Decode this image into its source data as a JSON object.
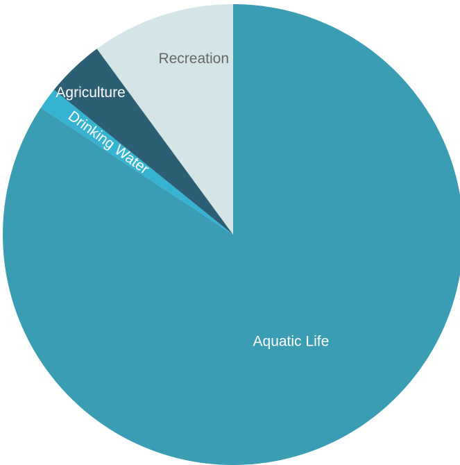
{
  "chart_data": {
    "type": "pie",
    "title": "",
    "slices": [
      {
        "label": "Aquatic Life",
        "value": 82.0,
        "color": "#3a9db3",
        "label_color": "#ffffff"
      },
      {
        "label": "Drinking Water",
        "value": 1.5,
        "color": "#35b3d1",
        "label_color": "#ffffff"
      },
      {
        "label": "Agriculture",
        "value": 4.0,
        "color": "#2c5f73",
        "label_color": "#ffffff"
      },
      {
        "label": "Recreation",
        "value": 9.8,
        "color": "#d3e5e7",
        "label_color": "#666666"
      }
    ],
    "start_angle_deg": 0,
    "direction": "clockwise",
    "legend": "none",
    "background_color": "#ffffff"
  }
}
